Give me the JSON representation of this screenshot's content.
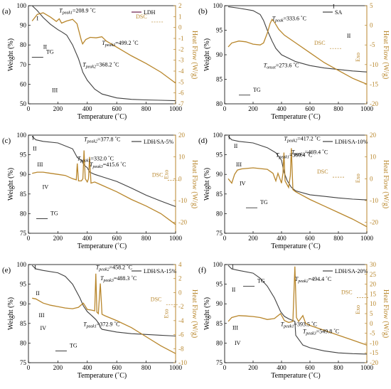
{
  "chart_data": [
    {
      "type": "line",
      "panel": "(a)",
      "legend": "LDH",
      "xlabel": "Temperature (˚C)",
      "ylabel": "Weight (%)",
      "y2label": "Heat Flow (W/g)",
      "xlim": [
        0,
        1000
      ],
      "ylim": [
        50,
        100
      ],
      "y2lim": [
        -7,
        2
      ],
      "xticks": [
        0,
        200,
        400,
        600,
        800,
        1000
      ],
      "yticks": [
        50,
        60,
        70,
        80,
        90,
        100
      ],
      "y2ticks": [
        -7,
        -6,
        -5,
        -4,
        -3,
        -2,
        -1,
        0,
        1,
        2
      ],
      "tg": {
        "x": [
          25,
          60,
          100,
          150,
          200,
          230,
          260,
          300,
          340,
          370,
          400,
          450,
          500,
          600,
          700,
          800,
          900,
          1000
        ],
        "y": [
          100,
          97.5,
          94,
          90.5,
          87.8,
          86.5,
          85,
          80,
          73,
          66,
          62,
          57.5,
          55,
          53,
          52.3,
          52,
          51.8,
          51.6
        ]
      },
      "dsc": {
        "x": [
          25,
          60,
          100,
          150,
          190,
          209,
          225,
          260,
          300,
          330,
          360,
          368,
          390,
          420,
          460,
          499,
          530,
          600,
          700,
          800,
          900,
          1000
        ],
        "y": [
          0.6,
          1.2,
          1.35,
          0.95,
          0.55,
          0.8,
          0.4,
          0.6,
          0.75,
          0.35,
          -1.2,
          -1.5,
          -1.1,
          -0.9,
          -0.95,
          -0.85,
          -1.25,
          -1.8,
          -2.6,
          -3.3,
          -4.1,
          -5.1
        ]
      },
      "annotations": [
        {
          "text": "T",
          "sub": "peak1",
          "value": "=208.9 ˚C",
          "x": 208.9,
          "side": "tg_axis",
          "y": 96.5
        },
        {
          "text": "T",
          "sub": "peak3",
          "value": "=499.2 ˚C",
          "x": 499.2,
          "side": "tg_axis",
          "y": 80
        },
        {
          "text": "T",
          "sub": "peak2",
          "value": "=368.2 ˚C",
          "x": 368.2,
          "side": "tg_axis",
          "y": 69
        },
        {
          "text": "DSC",
          "x": 730,
          "side": "tg_axis",
          "y": 93.5
        },
        {
          "text": "TG",
          "x": 120,
          "side": "tg_axis",
          "y": 75.5
        },
        {
          "text": "I",
          "x": 55,
          "side": "tg_axis",
          "y": 92.5
        },
        {
          "text": "II",
          "x": 100,
          "side": "tg_axis",
          "y": 78
        },
        {
          "text": "III",
          "x": 160,
          "side": "tg_axis",
          "y": 56
        }
      ]
    },
    {
      "type": "line",
      "panel": "(b)",
      "legend": "SA",
      "xlabel": "Temperature (˚C)",
      "ylabel": "Weight (%)",
      "y2label": "Heat Flow (W/g)",
      "xlim": [
        0,
        1000
      ],
      "ylim": [
        80,
        100
      ],
      "y2lim": [
        -20,
        5
      ],
      "xticks": [
        0,
        200,
        400,
        600,
        800,
        1000
      ],
      "yticks": [
        80,
        85,
        90,
        95,
        100
      ],
      "y2ticks": [
        -20,
        -15,
        -10,
        -5,
        0,
        5
      ],
      "tg": {
        "x": [
          25,
          100,
          200,
          250,
          273.6,
          300,
          333.6,
          360,
          400,
          500,
          600,
          700,
          800,
          900,
          1000
        ],
        "y": [
          99.8,
          99.5,
          99,
          98.2,
          97,
          95,
          92.8,
          91.3,
          90,
          88.6,
          87.8,
          87.3,
          87,
          86.7,
          86.5
        ]
      },
      "dsc": {
        "x": [
          25,
          50,
          100,
          150,
          200,
          250,
          273.6,
          300,
          320,
          333.6,
          350,
          380,
          420,
          500,
          600,
          700,
          800,
          900,
          1000
        ],
        "y": [
          -5.5,
          -4.5,
          -4,
          -4.2,
          -4.8,
          -5,
          -4.5,
          -2,
          0.5,
          1.5,
          0.8,
          -1,
          -2.5,
          -4.5,
          -7,
          -9.5,
          -11.5,
          -13.5,
          -15
        ]
      },
      "annotations": [
        {
          "text": "T",
          "sub": "peak",
          "value": "=333.6 ˚C",
          "x": 333.6,
          "side": "tg_axis",
          "y": 97
        },
        {
          "text": "T",
          "sub": "onset",
          "value": "=273.6 ˚C",
          "x": 273.6,
          "side": "tg_axis",
          "y": 87.5
        },
        {
          "text": "DSC",
          "x": 630,
          "side": "tg_axis",
          "y": 92
        },
        {
          "text": "TG",
          "x": 200,
          "side": "tg_axis",
          "y": 82.5
        },
        {
          "text": "I",
          "x": 760,
          "side": "tg_axis",
          "y": 99.5
        },
        {
          "text": "II",
          "x": 860,
          "side": "tg_axis",
          "y": 93.5
        },
        {
          "text": "Exo",
          "x": 950,
          "side": "tg_axis",
          "y": 89.5,
          "rotate": true
        }
      ]
    },
    {
      "type": "line",
      "panel": "(c)",
      "legend": "LDH/SA-5%",
      "xlabel": "Temperature (˚C)",
      "ylabel": "Weight (%)",
      "y2label": "Heat Flow (W/g)",
      "xlim": [
        0,
        1000
      ],
      "ylim": [
        75,
        100
      ],
      "y2lim": [
        -25,
        20
      ],
      "xticks": [
        0,
        200,
        400,
        600,
        800,
        1000
      ],
      "yticks": [
        75,
        80,
        85,
        90,
        95,
        100
      ],
      "y2ticks": [
        -20,
        -10,
        0,
        10,
        20
      ],
      "tg": {
        "x": [
          25,
          50,
          100,
          200,
          300,
          332,
          360,
          378,
          400,
          415.6,
          450,
          500,
          600,
          700,
          800,
          900,
          1000
        ],
        "y": [
          99.7,
          98.8,
          98.4,
          98,
          96.5,
          94.3,
          93.6,
          92.4,
          91.7,
          90.6,
          90,
          89.4,
          88.2,
          86.5,
          84.7,
          83.2,
          81.8
        ]
      },
      "dsc": {
        "x": [
          25,
          60,
          100,
          150,
          200,
          250,
          300,
          325,
          332,
          340,
          360,
          370,
          378,
          386,
          400,
          408,
          415.6,
          425,
          450,
          500,
          600,
          700,
          800,
          900,
          1000
        ],
        "y": [
          2.5,
          3,
          3,
          2.5,
          2,
          1.5,
          0,
          -0.5,
          7,
          -1,
          -1,
          0,
          13,
          0,
          -1.5,
          0,
          10,
          -2,
          -1.5,
          -3,
          -6,
          -9.5,
          -12.5,
          -16,
          -21
        ]
      },
      "annotations": [
        {
          "text": "T",
          "sub": "peak1",
          "value": "=332.0 ˚C",
          "x": 332,
          "side": "tg_axis",
          "y": 93.6
        },
        {
          "text": "T",
          "sub": "peak2",
          "value": "=377.8 ˚C",
          "x": 377.8,
          "side": "tg_axis",
          "y": 98.5
        },
        {
          "text": "T",
          "sub": "peak3",
          "value": "=415.6 ˚C",
          "x": 415.6,
          "side": "tg_axis",
          "y": 92
        },
        {
          "text": "DSC",
          "x": 840,
          "side": "tg_axis",
          "y": 89.4
        },
        {
          "text": "TG",
          "x": 150,
          "side": "tg_axis",
          "y": 79.6
        },
        {
          "text": "I",
          "x": 25,
          "side": "tg_axis",
          "y": 98.8
        },
        {
          "text": "II",
          "x": 30,
          "side": "tg_axis",
          "y": 96.1
        },
        {
          "text": "III",
          "x": 60,
          "side": "tg_axis",
          "y": 92
        },
        {
          "text": "IV",
          "x": 95,
          "side": "tg_axis",
          "y": 86.3
        },
        {
          "text": "Exo",
          "x": 950,
          "side": "tg_axis",
          "y": 90,
          "rotate": true
        }
      ]
    },
    {
      "type": "line",
      "panel": "(d)",
      "legend": "LDH/SA-10%",
      "xlabel": "Temperature (˚C)",
      "ylabel": "Weight (%)",
      "y2label": "Heat Flow (W/g)",
      "xlim": [
        0,
        1000
      ],
      "ylim": [
        75,
        100
      ],
      "y2lim": [
        -25,
        20
      ],
      "xticks": [
        0,
        200,
        400,
        600,
        800,
        1000
      ],
      "yticks": [
        75,
        80,
        85,
        90,
        95,
        100
      ],
      "y2ticks": [
        -20,
        -10,
        0,
        10,
        20
      ],
      "tg": {
        "x": [
          25,
          50,
          100,
          200,
          300,
          360,
          400,
          417,
          440,
          469,
          500,
          600,
          700,
          800,
          900,
          1000
        ],
        "y": [
          99.7,
          98.8,
          98.4,
          98,
          96.8,
          95.5,
          93.6,
          90.6,
          88.4,
          86.7,
          85.8,
          84.8,
          84.4,
          84,
          83.7,
          83.5
        ]
      },
      "dsc": {
        "x": [
          25,
          50,
          70,
          90,
          120,
          200,
          300,
          340,
          360,
          375,
          400,
          410,
          417,
          425,
          450,
          462,
          469,
          480,
          500,
          600,
          700,
          800,
          900,
          1000
        ],
        "y": [
          0,
          -2,
          2,
          4,
          4.5,
          5,
          4.3,
          2.5,
          -1,
          2.5,
          -2,
          2.5,
          12,
          -1,
          -4,
          1.5,
          14,
          -5,
          -6,
          -9.5,
          -12.5,
          -15.5,
          -18.5,
          -22
        ]
      },
      "annotations": [
        {
          "text": "T",
          "sub": "peak1",
          "value": "=360.4 ˚C",
          "x": 360.4,
          "side": "tg_axis",
          "y": 94.5
        },
        {
          "text": "T",
          "sub": "peak2",
          "value": "=417.2 ˚C",
          "x": 417.2,
          "side": "tg_axis",
          "y": 98.6
        },
        {
          "text": "T",
          "sub": "peak3",
          "value": "=469.4 ˚C",
          "x": 469.4,
          "side": "tg_axis",
          "y": 95.2
        },
        {
          "text": "DSC",
          "x": 650,
          "side": "tg_axis",
          "y": 90.2
        },
        {
          "text": "TG",
          "x": 250,
          "side": "tg_axis",
          "y": 82.4
        },
        {
          "text": "I",
          "x": 25,
          "side": "tg_axis",
          "y": 99
        },
        {
          "text": "II",
          "x": 65,
          "side": "tg_axis",
          "y": 96.7
        },
        {
          "text": "III",
          "x": 80,
          "side": "tg_axis",
          "y": 92
        },
        {
          "text": "IV",
          "x": 105,
          "side": "tg_axis",
          "y": 87.2
        },
        {
          "text": "Exo",
          "x": 950,
          "side": "tg_axis",
          "y": 89,
          "rotate": true
        }
      ]
    },
    {
      "type": "line",
      "panel": "(e)",
      "legend": "LDH/SA-15%",
      "xlabel": "Temperature (˚C)",
      "ylabel": "Weight (%)",
      "y2label": "Heat Flow (W/g)",
      "xlim": [
        0,
        1000
      ],
      "ylim": [
        75,
        100
      ],
      "y2lim": [
        -10,
        4
      ],
      "xticks": [
        0,
        200,
        400,
        600,
        800,
        1000
      ],
      "yticks": [
        75,
        80,
        85,
        90,
        95,
        100
      ],
      "y2ticks": [
        -10,
        -8,
        -6,
        -4,
        -2,
        0,
        2,
        4
      ],
      "tg": {
        "x": [
          25,
          50,
          100,
          200,
          250,
          300,
          350,
          372.9,
          400,
          430,
          458,
          480,
          488,
          500,
          600,
          700,
          800,
          900,
          1000
        ],
        "y": [
          99.8,
          98.9,
          98.5,
          97.9,
          97,
          95,
          91.5,
          89.5,
          88,
          87,
          86,
          84.9,
          84,
          83.5,
          82.8,
          82.4,
          82.2,
          82,
          81.8
        ]
      },
      "dsc": {
        "x": [
          25,
          50,
          100,
          150,
          200,
          250,
          300,
          340,
          372.9,
          400,
          430,
          450,
          458.2,
          465,
          475,
          488.3,
          500,
          520,
          600,
          700,
          800,
          900,
          1000
        ],
        "y": [
          -0.8,
          -0.9,
          -1.5,
          -1.8,
          -2,
          -2.2,
          -2.3,
          -2.1,
          -1.5,
          -2.4,
          -2.5,
          -2.6,
          2.7,
          -2.8,
          -3,
          1.3,
          -3.1,
          -3.3,
          -4,
          -5,
          -6.3,
          -7.6,
          -8.7
        ]
      },
      "annotations": [
        {
          "text": "T",
          "sub": "peak2",
          "value": "=458.2 ˚C",
          "x": 458.2,
          "side": "tg_axis",
          "y": 98.8
        },
        {
          "text": "T",
          "sub": "peak3",
          "value": "=488.3 ˚C",
          "x": 488.3,
          "side": "tg_axis",
          "y": 96
        },
        {
          "text": "T",
          "sub": "peak1",
          "value": "=372.9 ˚C",
          "x": 372.9,
          "side": "tg_axis",
          "y": 84.3
        },
        {
          "text": "DSC",
          "x": 830,
          "side": "tg_axis",
          "y": 90.7
        },
        {
          "text": "TG",
          "x": 280,
          "side": "tg_axis",
          "y": 78.9
        },
        {
          "text": "I",
          "x": 40,
          "side": "tg_axis",
          "y": 98.8
        },
        {
          "text": "II",
          "x": 50,
          "side": "tg_axis",
          "y": 92.2
        },
        {
          "text": "III",
          "x": 70,
          "side": "tg_axis",
          "y": 86.6
        },
        {
          "text": "IV",
          "x": 80,
          "side": "tg_axis",
          "y": 83.3
        },
        {
          "text": "Exo",
          "x": 950,
          "side": "tg_axis",
          "y": 87.5,
          "rotate": true
        }
      ]
    },
    {
      "type": "line",
      "panel": "(f)",
      "legend": "LDH/SA-20%",
      "xlabel": "Temperature (˚C)",
      "ylabel": "Weight (%)",
      "y2label": "Heat Flow (W/g)",
      "xlim": [
        0,
        1000
      ],
      "ylim": [
        75,
        100
      ],
      "y2lim": [
        -20,
        30
      ],
      "xticks": [
        0,
        200,
        400,
        600,
        800,
        1000
      ],
      "yticks": [
        75,
        80,
        85,
        90,
        95,
        100
      ],
      "y2ticks": [
        -20,
        -15,
        -10,
        -5,
        0,
        5,
        10,
        15,
        20,
        25,
        30
      ],
      "tg": {
        "x": [
          25,
          50,
          100,
          200,
          250,
          300,
          350,
          393.5,
          420,
          450,
          494,
          500,
          550,
          600,
          700,
          800,
          900,
          1000
        ],
        "y": [
          99.8,
          98.9,
          98.5,
          97.8,
          96.5,
          94.5,
          91.5,
          88,
          86.8,
          86.2,
          85.5,
          82,
          79.5,
          78.8,
          78,
          77.5,
          77.3,
          77.2
        ]
      },
      "dsc": {
        "x": [
          25,
          50,
          100,
          150,
          200,
          250,
          300,
          350,
          393.5,
          420,
          450,
          480,
          494,
          505,
          520,
          549.8,
          570,
          600,
          700,
          800,
          900,
          1000
        ],
        "y": [
          1,
          3,
          4,
          3.8,
          3.5,
          3,
          2,
          2.5,
          5,
          1.5,
          0.5,
          1,
          29,
          3,
          1,
          4,
          0,
          -1,
          -3.5,
          -6,
          -8.5,
          -11
        ]
      },
      "annotations": [
        {
          "text": "T",
          "sub": "peak2",
          "value": "=494.4 ˚C",
          "x": 494.4,
          "side": "tg_axis",
          "y": 95.8
        },
        {
          "text": "T",
          "sub": "peak1",
          "value": "=393.5 ˚C",
          "x": 393.5,
          "side": "tg_axis",
          "y": 84.3
        },
        {
          "text": "T",
          "sub": "peak3",
          "value": "=549.8 ˚C",
          "x": 549.8,
          "side": "tg_axis",
          "y": 82.5
        },
        {
          "text": "DSC",
          "x": 820,
          "side": "tg_axis",
          "y": 92.5
        },
        {
          "text": "TG",
          "x": 230,
          "side": "tg_axis",
          "y": 95.4
        },
        {
          "text": "I",
          "x": 50,
          "side": "tg_axis",
          "y": 99
        },
        {
          "text": "II",
          "x": 50,
          "side": "tg_axis",
          "y": 93.1
        },
        {
          "text": "III",
          "x": 55,
          "side": "tg_axis",
          "y": 83.4
        },
        {
          "text": "IV",
          "x": 70,
          "side": "tg_axis",
          "y": 79.5
        },
        {
          "text": "Exo",
          "x": 950,
          "side": "tg_axis",
          "y": 88.5,
          "rotate": true
        }
      ]
    }
  ],
  "colors": {
    "tg": "#404040",
    "dsc": "#b8862b",
    "axis": "#000000",
    "y2axis": "#b8862b",
    "legend_tg": "#6b1a4a"
  }
}
